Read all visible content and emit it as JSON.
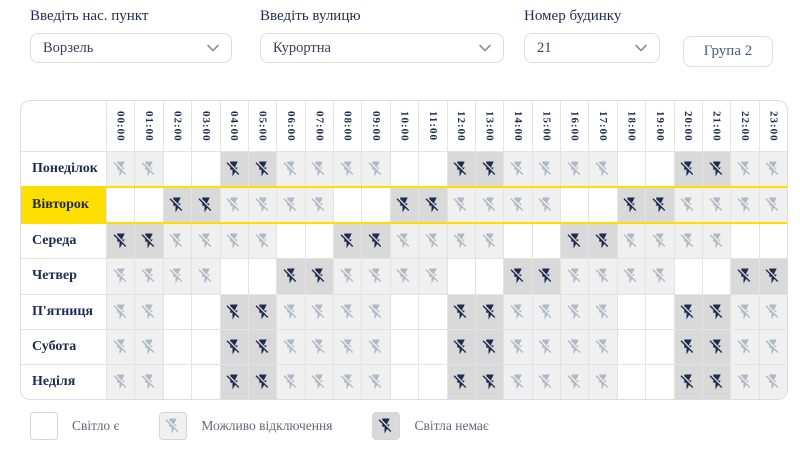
{
  "controls": {
    "settlement": {
      "label": "Введіть нас. пункт",
      "value": "Ворзель"
    },
    "street": {
      "label": "Введіть вулицю",
      "value": "Курортна"
    },
    "building": {
      "label": "Номер будинку",
      "value": "21"
    },
    "group_button_label": "Група 2"
  },
  "schedule": {
    "hours": [
      "00:00",
      "01:00",
      "02:00",
      "03:00",
      "04:00",
      "05:00",
      "06:00",
      "07:00",
      "08:00",
      "09:00",
      "10:00",
      "11:00",
      "12:00",
      "13:00",
      "14:00",
      "15:00",
      "16:00",
      "17:00",
      "18:00",
      "19:00",
      "20:00",
      "21:00",
      "22:00",
      "23:00"
    ],
    "state_names": {
      "0": "light-on",
      "1": "possible-outage",
      "2": "no-light"
    },
    "highlighted_day_index": 1,
    "rows": [
      {
        "day": "Понеділок",
        "states": [
          1,
          1,
          0,
          0,
          2,
          2,
          1,
          1,
          1,
          1,
          0,
          0,
          2,
          2,
          1,
          1,
          1,
          1,
          0,
          0,
          2,
          2,
          1,
          1
        ]
      },
      {
        "day": "Вівторок",
        "states": [
          0,
          0,
          2,
          2,
          1,
          1,
          1,
          1,
          0,
          0,
          2,
          2,
          1,
          1,
          1,
          1,
          0,
          0,
          2,
          2,
          1,
          1,
          1,
          1
        ]
      },
      {
        "day": "Середа",
        "states": [
          2,
          2,
          1,
          1,
          1,
          1,
          0,
          0,
          2,
          2,
          1,
          1,
          1,
          1,
          0,
          0,
          2,
          2,
          1,
          1,
          1,
          1,
          0,
          0
        ]
      },
      {
        "day": "Четвер",
        "states": [
          1,
          1,
          1,
          1,
          0,
          0,
          2,
          2,
          1,
          1,
          1,
          1,
          0,
          0,
          2,
          2,
          1,
          1,
          1,
          1,
          0,
          0,
          2,
          2
        ]
      },
      {
        "day": "П'ятниця",
        "states": [
          1,
          1,
          0,
          0,
          2,
          2,
          1,
          1,
          1,
          1,
          0,
          0,
          2,
          2,
          1,
          1,
          1,
          1,
          0,
          0,
          2,
          2,
          1,
          1
        ]
      },
      {
        "day": "Субота",
        "states": [
          1,
          1,
          0,
          0,
          2,
          2,
          1,
          1,
          1,
          1,
          0,
          0,
          2,
          2,
          1,
          1,
          1,
          1,
          0,
          0,
          2,
          2,
          1,
          1
        ]
      },
      {
        "day": "Неділя",
        "states": [
          1,
          1,
          0,
          0,
          2,
          2,
          1,
          1,
          1,
          1,
          0,
          0,
          2,
          2,
          1,
          1,
          1,
          1,
          0,
          0,
          2,
          2,
          1,
          1
        ]
      }
    ]
  },
  "legend": {
    "items": [
      {
        "state": 0,
        "label": "Світло є"
      },
      {
        "state": 1,
        "label": "Можливо відключення"
      },
      {
        "state": 2,
        "label": "Світла немає"
      }
    ]
  },
  "colors": {
    "accent_yellow": "#ffdf00",
    "navy": "#1e2c4f",
    "icon_gray": "#b0b9c6",
    "cell_possible_bg": "#f0f0f0",
    "cell_off_bg": "#d9d9d9",
    "border": "#e3e3e3"
  }
}
